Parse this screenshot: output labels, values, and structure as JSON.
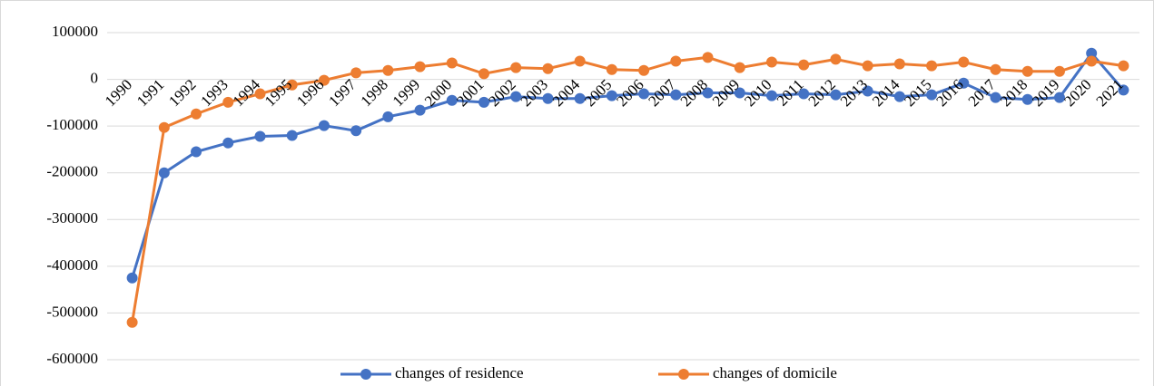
{
  "chart_data": {
    "type": "line",
    "categories": [
      "1990",
      "1991",
      "1992",
      "1993",
      "1994",
      "1995",
      "1996",
      "1997",
      "1998",
      "1999",
      "2000",
      "2001",
      "2002",
      "2003",
      "2004",
      "2005",
      "2006",
      "2007",
      "2008",
      "2009",
      "2010",
      "2011",
      "2012",
      "2013",
      "2014",
      "2015",
      "2016",
      "2017",
      "2018",
      "2019",
      "2020",
      "2021"
    ],
    "series": [
      {
        "name": "changes of residence",
        "color": "#4472c4",
        "values": [
          -425000,
          -200000,
          -155000,
          -136000,
          -122000,
          -120000,
          -99000,
          -110000,
          -80000,
          -66000,
          -45000,
          -49000,
          -37000,
          -41000,
          -41000,
          -35000,
          -31000,
          -33000,
          -29000,
          -29000,
          -35000,
          -31000,
          -33000,
          -25000,
          -37000,
          -33000,
          -8000,
          -39000,
          -43000,
          -39000,
          56000,
          -23000
        ]
      },
      {
        "name": "changes of domicile",
        "color": "#ed7d31",
        "values": [
          -520000,
          -103000,
          -74000,
          -49000,
          -31000,
          -12000,
          -2000,
          14000,
          19000,
          27000,
          35000,
          12000,
          25000,
          23000,
          39000,
          21000,
          19000,
          39000,
          47000,
          25000,
          37000,
          31000,
          43000,
          29000,
          33000,
          29000,
          37000,
          21000,
          17000,
          17000,
          39000,
          29000
        ]
      }
    ],
    "ylim": [
      -600000,
      100000
    ],
    "yticks": [
      -600000,
      -500000,
      -400000,
      -300000,
      -200000,
      -100000,
      0,
      100000
    ],
    "grid": true,
    "legend": "bottom"
  }
}
